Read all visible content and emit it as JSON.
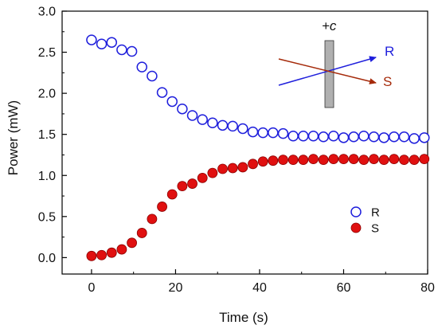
{
  "chart_data": {
    "type": "scatter",
    "xlabel": "Time (s)",
    "ylabel": "Power (mW)",
    "xlim": [
      -7,
      80
    ],
    "ylim": [
      -0.2,
      3.0
    ],
    "x_ticks": [
      0,
      20,
      40,
      60,
      80
    ],
    "x_tick_labels": [
      "0",
      "20",
      "40",
      "60",
      "80"
    ],
    "y_ticks": [
      0.0,
      0.5,
      1.0,
      1.5,
      2.0,
      2.5,
      3.0
    ],
    "y_tick_labels": [
      "0.0",
      "0.5",
      "1.0",
      "1.5",
      "2.0",
      "2.5",
      "3.0"
    ],
    "grid": false,
    "legend_position": "center-right",
    "series": [
      {
        "name": "R",
        "marker": "open-circle",
        "color": "#1f1fdc",
        "x": [
          0,
          2.4,
          4.8,
          7.2,
          9.6,
          12,
          14.4,
          16.8,
          19.2,
          21.6,
          24,
          26.4,
          28.8,
          31.2,
          33.6,
          36,
          38.4,
          40.8,
          43.2,
          45.6,
          48,
          50.4,
          52.8,
          55.2,
          57.6,
          60,
          62.4,
          64.8,
          67.2,
          69.6,
          72,
          74.4,
          76.8,
          79.2
        ],
        "y": [
          2.65,
          2.6,
          2.62,
          2.53,
          2.51,
          2.32,
          2.21,
          2.01,
          1.9,
          1.81,
          1.73,
          1.68,
          1.64,
          1.61,
          1.6,
          1.57,
          1.53,
          1.52,
          1.52,
          1.51,
          1.48,
          1.48,
          1.48,
          1.47,
          1.48,
          1.46,
          1.47,
          1.48,
          1.47,
          1.46,
          1.47,
          1.47,
          1.45,
          1.46
        ]
      },
      {
        "name": "S",
        "marker": "filled-circle",
        "color": "#e01010",
        "x": [
          0,
          2.4,
          4.8,
          7.2,
          9.6,
          12,
          14.4,
          16.8,
          19.2,
          21.6,
          24,
          26.4,
          28.8,
          31.2,
          33.6,
          36,
          38.4,
          40.8,
          43.2,
          45.6,
          48,
          50.4,
          52.8,
          55.2,
          57.6,
          60,
          62.4,
          64.8,
          67.2,
          69.6,
          72,
          74.4,
          76.8,
          79.2
        ],
        "y": [
          0.02,
          0.03,
          0.06,
          0.1,
          0.18,
          0.3,
          0.47,
          0.62,
          0.77,
          0.87,
          0.9,
          0.97,
          1.03,
          1.08,
          1.09,
          1.1,
          1.14,
          1.17,
          1.18,
          1.19,
          1.19,
          1.19,
          1.2,
          1.19,
          1.2,
          1.2,
          1.2,
          1.19,
          1.2,
          1.19,
          1.2,
          1.19,
          1.19,
          1.2
        ]
      }
    ],
    "inset": {
      "crystal_label": "+c",
      "beam_labels": [
        "R",
        "S"
      ],
      "beam_colors": {
        "R": "#1f1fdc",
        "S": "#a52a0a"
      },
      "crystal_color": "#b0b0b0"
    }
  }
}
